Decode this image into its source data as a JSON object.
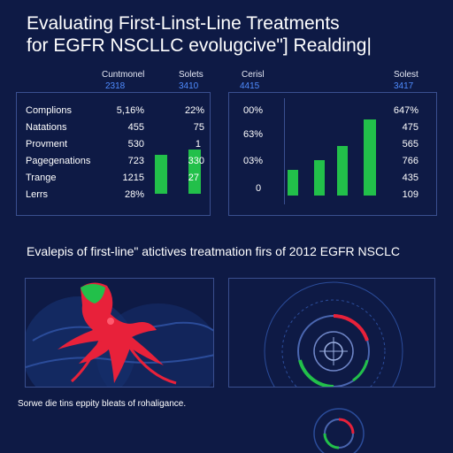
{
  "title": {
    "line1": "Evaluating First-Linst-Line Treatments",
    "line2": "for EGFR NSCLLC evolugcive\"] Realding|"
  },
  "left_panel": {
    "headers": [
      {
        "label": "Cuntmonel",
        "value": "2318"
      },
      {
        "label": "Solets",
        "value": "3410"
      }
    ],
    "rows": [
      {
        "label": "Complions",
        "v1": "5,16%",
        "v2": "22%"
      },
      {
        "label": "Natations",
        "v1": "455",
        "v2": "75"
      },
      {
        "label": "Provment",
        "v1": "530",
        "v2": "1"
      },
      {
        "label": "Pagegenations",
        "v1": "723",
        "v2": "330"
      },
      {
        "label": "Trange",
        "v1": "1215",
        "v2": "27"
      },
      {
        "label": "Lerrs",
        "v1": "28%",
        "v2": ""
      }
    ],
    "bars": [
      0.55,
      0.62
    ]
  },
  "right_panel": {
    "headers": [
      {
        "label": "Cerisl",
        "value": "4415"
      },
      {
        "label": "Solest",
        "value": "3417"
      }
    ],
    "axis_labels": [
      "00%",
      "63%",
      "03%",
      "0"
    ],
    "values": [
      "647%",
      "475",
      "565",
      "766",
      "435",
      "109"
    ],
    "bars": [
      0.3,
      0.42,
      0.58,
      0.9
    ]
  },
  "subtitle": "Evalepis of first-line\" atictives treatmation firs of 2012 EGFR NSCLC",
  "footer": "Sorwe die tins eppity bleats of rohaligance.",
  "colors": {
    "background": "#0e1a45",
    "panel_border": "#3a4f8f",
    "accent_green": "#22c04a",
    "accent_blue": "#4f8cff",
    "accent_red": "#e8213a"
  }
}
